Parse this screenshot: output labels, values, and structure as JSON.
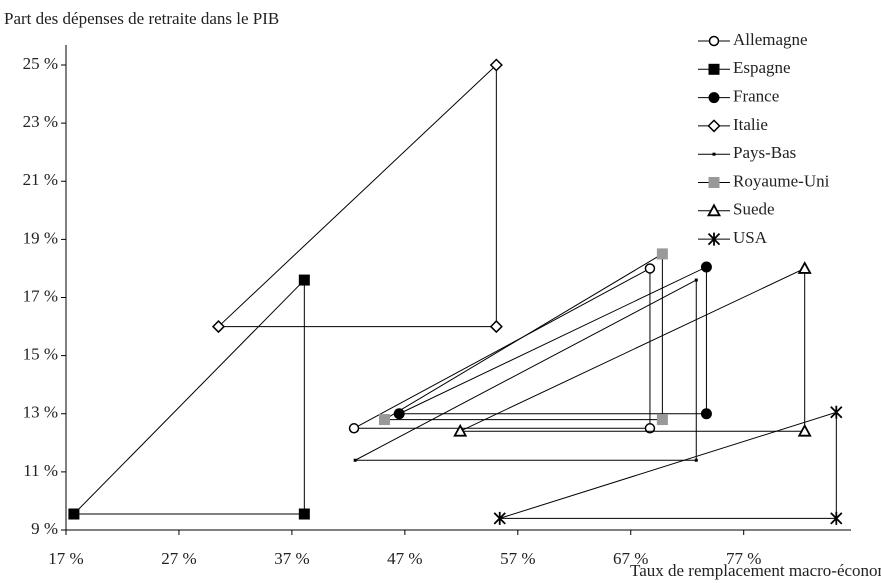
{
  "chart_data": {
    "type": "line",
    "y_axis_label": "Part des dépenses de retraite dans le PIB",
    "x_axis_label": "Taux de remplacement macro-économique net",
    "xlim": [
      17,
      86.5
    ],
    "ylim": [
      9,
      25
    ],
    "xticks": [
      {
        "value": 17,
        "label": "17 %"
      },
      {
        "value": 27,
        "label": "27 %"
      },
      {
        "value": 37,
        "label": "37 %"
      },
      {
        "value": 47,
        "label": "47 %"
      },
      {
        "value": 57,
        "label": "57 %"
      },
      {
        "value": 67,
        "label": "67 %"
      },
      {
        "value": 77,
        "label": "77 %"
      }
    ],
    "yticks": [
      {
        "value": 9,
        "label": "9 %"
      },
      {
        "value": 11,
        "label": "11 %"
      },
      {
        "value": 13,
        "label": "13 %"
      },
      {
        "value": 15,
        "label": "15 %"
      },
      {
        "value": 17,
        "label": "17 %"
      },
      {
        "value": 19,
        "label": "19 %"
      },
      {
        "value": 21,
        "label": "21 %"
      },
      {
        "value": 23,
        "label": "23 %"
      },
      {
        "value": 25,
        "label": "25 %"
      }
    ],
    "series": [
      {
        "name": "Allemagne",
        "color": "#000000",
        "marker": "circle-open",
        "x": [
          42.5,
          68.7,
          68.7,
          42.5
        ],
        "values": [
          12.5,
          18.0,
          12.5,
          12.5
        ]
      },
      {
        "name": "Espagne",
        "color": "#000000",
        "marker": "square",
        "x": [
          17.7,
          38.1,
          38.1,
          17.7
        ],
        "values": [
          9.55,
          17.6,
          9.55,
          9.55
        ]
      },
      {
        "name": "France",
        "color": "#000000",
        "marker": "circle",
        "x": [
          46.5,
          73.7,
          73.7,
          46.5
        ],
        "values": [
          13.0,
          18.05,
          13.0,
          13.0
        ]
      },
      {
        "name": "Italie",
        "color": "#000000",
        "marker": "diamond-open",
        "x": [
          30.5,
          55.1,
          55.1,
          30.5
        ],
        "values": [
          16.0,
          25.0,
          16.0,
          16.0
        ]
      },
      {
        "name": "Pays-Bas",
        "color": "#000000",
        "marker": "dot",
        "x": [
          42.6,
          72.8,
          72.8,
          42.6
        ],
        "values": [
          11.4,
          17.6,
          11.4,
          11.4
        ]
      },
      {
        "name": "Royaume-Uni",
        "color": "#999999",
        "marker": "square",
        "x": [
          45.2,
          69.8,
          69.8,
          45.2
        ],
        "values": [
          12.8,
          18.5,
          12.8,
          12.8
        ]
      },
      {
        "name": "Suede",
        "color": "#000000",
        "marker": "triangle-open",
        "x": [
          51.9,
          82.4,
          82.4,
          51.9
        ],
        "values": [
          12.4,
          18.0,
          12.4,
          12.4
        ]
      },
      {
        "name": "USA",
        "color": "#000000",
        "marker": "star",
        "x": [
          55.4,
          85.2,
          85.2,
          55.4
        ],
        "values": [
          9.4,
          13.05,
          9.4,
          9.4
        ]
      }
    ]
  }
}
